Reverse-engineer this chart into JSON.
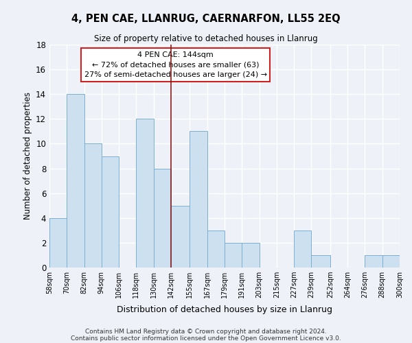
{
  "title": "4, PEN CAE, LLANRUG, CAERNARFON, LL55 2EQ",
  "subtitle": "Size of property relative to detached houses in Llanrug",
  "xlabel": "Distribution of detached houses by size in Llanrug",
  "ylabel": "Number of detached properties",
  "bar_color": "#cce0f0",
  "bar_edge_color": "#7aafd4",
  "bg_color": "#eef2f8",
  "grid_color": "#ffffff",
  "annotation_line1": "4 PEN CAE: 144sqm",
  "annotation_line2": "← 72% of detached houses are smaller (63)",
  "annotation_line3": "27% of semi-detached houses are larger (24) →",
  "vline_color": "#8b1a1a",
  "categories": [
    "58sqm",
    "70sqm",
    "82sqm",
    "94sqm",
    "106sqm",
    "118sqm",
    "130sqm",
    "142sqm",
    "155sqm",
    "167sqm",
    "179sqm",
    "191sqm",
    "203sqm",
    "215sqm",
    "227sqm",
    "239sqm",
    "252sqm",
    "264sqm",
    "276sqm",
    "288sqm",
    "300sqm"
  ],
  "bin_edges": [
    58,
    70,
    82,
    94,
    106,
    118,
    130,
    142,
    155,
    167,
    179,
    191,
    203,
    215,
    227,
    239,
    252,
    264,
    276,
    288,
    300
  ],
  "values": [
    4,
    14,
    10,
    9,
    0,
    12,
    8,
    5,
    11,
    3,
    2,
    2,
    0,
    0,
    3,
    1,
    0,
    0,
    1,
    1,
    0
  ],
  "vline_x": 142,
  "ylim": [
    0,
    18
  ],
  "yticks": [
    0,
    2,
    4,
    6,
    8,
    10,
    12,
    14,
    16,
    18
  ],
  "footer1": "Contains HM Land Registry data © Crown copyright and database right 2024.",
  "footer2": "Contains public sector information licensed under the Open Government Licence v3.0."
}
